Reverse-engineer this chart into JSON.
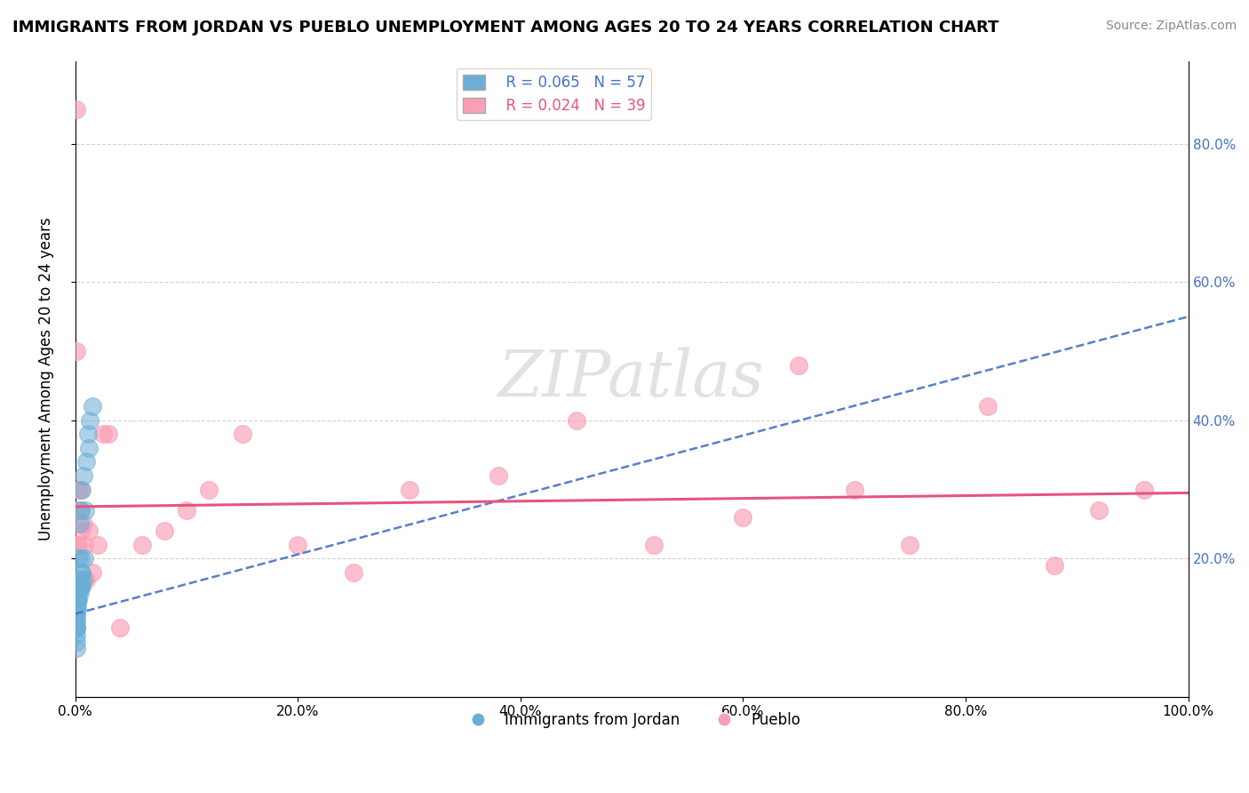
{
  "title": "IMMIGRANTS FROM JORDAN VS PUEBLO UNEMPLOYMENT AMONG AGES 20 TO 24 YEARS CORRELATION CHART",
  "source": "Source: ZipAtlas.com",
  "xlabel_items": [
    "Immigrants from Jordan",
    "Pueblo"
  ],
  "ylabel": "Unemployment Among Ages 20 to 24 years",
  "xlim": [
    0,
    1.0
  ],
  "ylim": [
    0,
    0.92
  ],
  "xticks": [
    0.0,
    0.2,
    0.4,
    0.6,
    0.8,
    1.0
  ],
  "xtick_labels": [
    "0.0%",
    "20.0%",
    "40.0%",
    "60.0%",
    "80.0%",
    "100.0%"
  ],
  "ytick_vals_right": [
    0.2,
    0.4,
    0.6,
    0.8
  ],
  "ytick_labels_right": [
    "20.0%",
    "40.0%",
    "60.0%",
    "80.0%"
  ],
  "legend_blue_R": "0.065",
  "legend_blue_N": "57",
  "legend_pink_R": "0.024",
  "legend_pink_N": "39",
  "blue_color": "#6baed6",
  "pink_color": "#fa9fb5",
  "blue_line_color": "#4472C4",
  "pink_line_color": "#e75480",
  "watermark_text": "ZIPatlas",
  "blue_scatter_x": [
    0.001,
    0.001,
    0.001,
    0.001,
    0.001,
    0.001,
    0.001,
    0.001,
    0.001,
    0.001,
    0.001,
    0.001,
    0.001,
    0.001,
    0.001,
    0.001,
    0.001,
    0.001,
    0.001,
    0.001,
    0.001,
    0.001,
    0.001,
    0.001,
    0.001,
    0.001,
    0.002,
    0.002,
    0.002,
    0.002,
    0.002,
    0.002,
    0.003,
    0.003,
    0.003,
    0.003,
    0.003,
    0.004,
    0.004,
    0.004,
    0.004,
    0.005,
    0.005,
    0.005,
    0.005,
    0.006,
    0.006,
    0.006,
    0.007,
    0.007,
    0.008,
    0.009,
    0.01,
    0.011,
    0.012,
    0.013,
    0.015
  ],
  "blue_scatter_y": [
    0.07,
    0.08,
    0.09,
    0.1,
    0.1,
    0.1,
    0.11,
    0.11,
    0.12,
    0.12,
    0.12,
    0.13,
    0.13,
    0.13,
    0.14,
    0.14,
    0.14,
    0.14,
    0.15,
    0.15,
    0.15,
    0.15,
    0.16,
    0.16,
    0.16,
    0.17,
    0.13,
    0.14,
    0.14,
    0.15,
    0.15,
    0.16,
    0.14,
    0.15,
    0.16,
    0.17,
    0.2,
    0.15,
    0.16,
    0.17,
    0.25,
    0.16,
    0.18,
    0.2,
    0.27,
    0.16,
    0.18,
    0.3,
    0.17,
    0.32,
    0.2,
    0.27,
    0.34,
    0.38,
    0.36,
    0.4,
    0.42
  ],
  "pink_scatter_x": [
    0.001,
    0.001,
    0.001,
    0.002,
    0.002,
    0.003,
    0.003,
    0.004,
    0.005,
    0.005,
    0.006,
    0.007,
    0.008,
    0.01,
    0.012,
    0.015,
    0.02,
    0.025,
    0.03,
    0.04,
    0.06,
    0.08,
    0.1,
    0.12,
    0.15,
    0.2,
    0.25,
    0.3,
    0.38,
    0.45,
    0.52,
    0.6,
    0.65,
    0.7,
    0.75,
    0.82,
    0.88,
    0.92,
    0.96
  ],
  "pink_scatter_y": [
    0.85,
    0.5,
    0.27,
    0.22,
    0.16,
    0.3,
    0.22,
    0.27,
    0.24,
    0.3,
    0.16,
    0.25,
    0.22,
    0.17,
    0.24,
    0.18,
    0.22,
    0.38,
    0.38,
    0.1,
    0.22,
    0.24,
    0.27,
    0.3,
    0.38,
    0.22,
    0.18,
    0.3,
    0.32,
    0.4,
    0.22,
    0.26,
    0.48,
    0.3,
    0.22,
    0.42,
    0.19,
    0.27,
    0.3
  ],
  "blue_trendline_x": [
    0.0,
    1.0
  ],
  "blue_trendline_y": [
    0.12,
    0.55
  ],
  "pink_trendline_x": [
    0.0,
    1.0
  ],
  "pink_trendline_y": [
    0.275,
    0.295
  ]
}
